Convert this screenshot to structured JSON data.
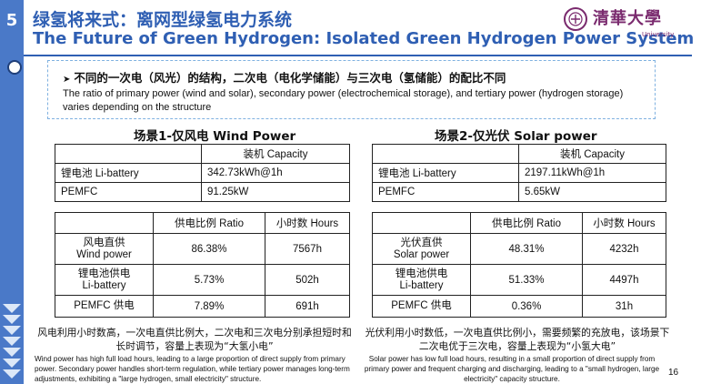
{
  "slide_number": "5",
  "title_zh": "绿氢将来式：离网型绿氢电力系统",
  "title_en": "The Future of Green Hydrogen: Isolated Green Hydrogen Power System",
  "logo": {
    "text": "清華大學",
    "sub": "University"
  },
  "callout": {
    "zh": "不同的一次电（风光）的结构，二次电（电化学储能）与三次电（氢储能）的配比不同",
    "en": "The ratio of primary power (wind and solar), secondary power (electrochemical storage), and tertiary power (hydrogen storage) varies depending on the structure"
  },
  "scenario1": {
    "title": "场景1-仅风电 Wind Power",
    "capacity_header": "装机 Capacity",
    "capacity_rows": [
      {
        "name": "锂电池 Li-battery",
        "value": "342.73kWh@1h"
      },
      {
        "name": "PEMFC",
        "value": "91.25kW"
      }
    ],
    "ratio_header": "供电比例 Ratio",
    "hours_header": "小时数 Hours",
    "rows": [
      {
        "name_zh": "风电直供",
        "name_en": "Wind power",
        "ratio": "86.38%",
        "hours": "7567h"
      },
      {
        "name_zh": "锂电池供电",
        "name_en": "Li-battery",
        "ratio": "5.73%",
        "hours": "502h"
      },
      {
        "name_zh": "PEMFC 供电",
        "name_en": "",
        "ratio": "7.89%",
        "hours": "691h"
      }
    ],
    "summary_zh": "风电利用小时数高，一次电直供比例大，二次电和三次电分别承担短时和长时调节，容量上表现为“大氢小电”",
    "summary_en": "Wind power has high full load hours, leading to a large proportion of direct supply from primary power. Secondary power handles short-term regulation, while tertiary power manages long-term adjustments, exhibiting a \"large hydrogen, small electricity\" structure."
  },
  "scenario2": {
    "title": "场景2-仅光伏 Solar power",
    "capacity_header": "装机 Capacity",
    "capacity_rows": [
      {
        "name": "锂电池 Li-battery",
        "value": "2197.11kWh@1h"
      },
      {
        "name": "PEMFC",
        "value": "5.65kW"
      }
    ],
    "ratio_header": "供电比例 Ratio",
    "hours_header": "小时数 Hours",
    "rows": [
      {
        "name_zh": "光伏直供",
        "name_en": "Solar power",
        "ratio": "48.31%",
        "hours": "4232h"
      },
      {
        "name_zh": "锂电池供电",
        "name_en": "Li-battery",
        "ratio": "51.33%",
        "hours": "4497h"
      },
      {
        "name_zh": "PEMFC 供电",
        "name_en": "",
        "ratio": "0.36%",
        "hours": "31h"
      }
    ],
    "summary_zh": "光伏利用小时数低，一次电直供比例小，需要频繁的充放电，该场景下二次电优于三次电，容量上表现为“小氢大电”",
    "summary_en": "Solar power has low full load hours, resulting in a small proportion of direct supply from primary power and frequent charging and discharging, leading to a \"small hydrogen, large electricity\" capacity structure."
  },
  "page_number": "16"
}
